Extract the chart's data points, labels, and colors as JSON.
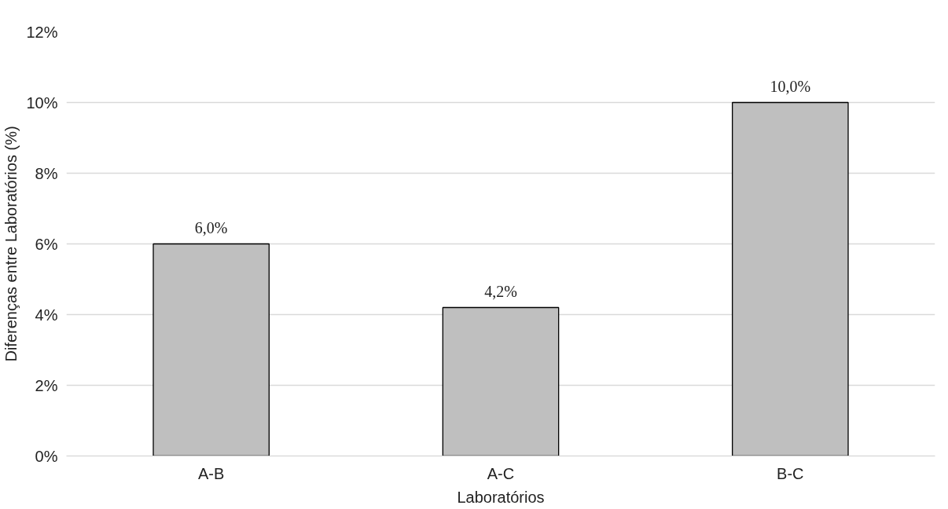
{
  "chart_data": {
    "type": "bar",
    "xlabel": "Laboratórios",
    "ylabel": "Diferenças entre Laboratórios (%)",
    "categories": [
      "A-B",
      "A-C",
      "B-C"
    ],
    "values": [
      6.0,
      4.2,
      10.0
    ],
    "color": "#bfbfbf",
    "value_labels": [
      "6,0%",
      "4,2%",
      "10,0%"
    ],
    "ylim": [
      0,
      12
    ],
    "yticks": [
      {
        "value": 0,
        "label": "0%"
      },
      {
        "value": 2,
        "label": "2%"
      },
      {
        "value": 4,
        "label": "4%"
      },
      {
        "value": 6,
        "label": "6%"
      },
      {
        "value": 8,
        "label": "8%"
      },
      {
        "value": 10,
        "label": "10%"
      },
      {
        "value": 12,
        "label": "12%"
      }
    ],
    "grid": "y"
  }
}
